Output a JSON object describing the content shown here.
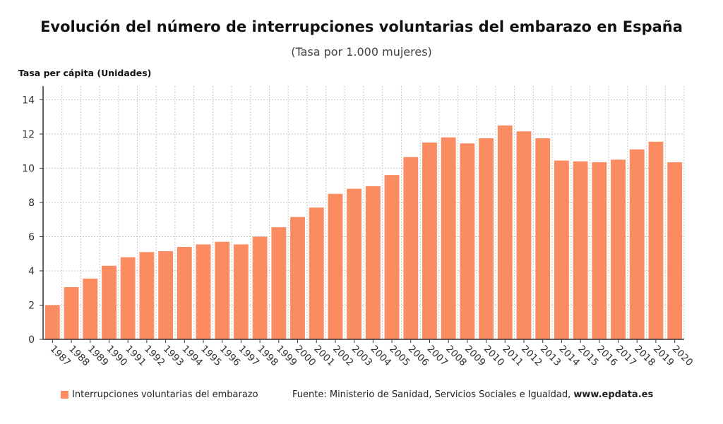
{
  "header": {
    "title": "Evolución del número de interrupciones voluntarias del embarazo en España",
    "subtitle": "(Tasa por 1.000 mujeres)"
  },
  "footer": {
    "source_prefix": "Fuente: Ministerio de Sanidad, Servicios Sociales e Igualdad, ",
    "source_site": "www.epdata.es"
  },
  "colors": {
    "bar": "#fb8c61",
    "grid": "#c8c8c8",
    "axis": "#333333"
  },
  "chart_data": {
    "type": "bar",
    "ylabel": "Tasa per cápita (Unidades)",
    "ylim": [
      0,
      14.8
    ],
    "yticks": [
      0,
      2,
      4,
      6,
      8,
      10,
      12,
      14
    ],
    "grid": true,
    "legend_position": "bottom-left",
    "categories": [
      "1987",
      "1988",
      "1989",
      "1990",
      "1991",
      "1992",
      "1993",
      "1994",
      "1995",
      "1996",
      "1997",
      "1998",
      "1999",
      "2000",
      "2001",
      "2002",
      "2003",
      "2004",
      "2005",
      "2006",
      "2007",
      "2008",
      "2009",
      "2010",
      "2011",
      "2012",
      "2013",
      "2014",
      "2015",
      "2016",
      "2017",
      "2018",
      "2019",
      "2020"
    ],
    "series": [
      {
        "name": "Interrupciones voluntarias del embarazo",
        "values": [
          2.0,
          3.05,
          3.55,
          4.3,
          4.8,
          5.1,
          5.15,
          5.4,
          5.55,
          5.7,
          5.55,
          6.0,
          6.55,
          7.15,
          7.7,
          8.5,
          8.8,
          8.95,
          9.6,
          10.65,
          11.5,
          11.8,
          11.45,
          11.75,
          12.5,
          12.15,
          11.75,
          10.45,
          10.4,
          10.35,
          10.5,
          11.1,
          11.55,
          10.35
        ]
      }
    ]
  }
}
